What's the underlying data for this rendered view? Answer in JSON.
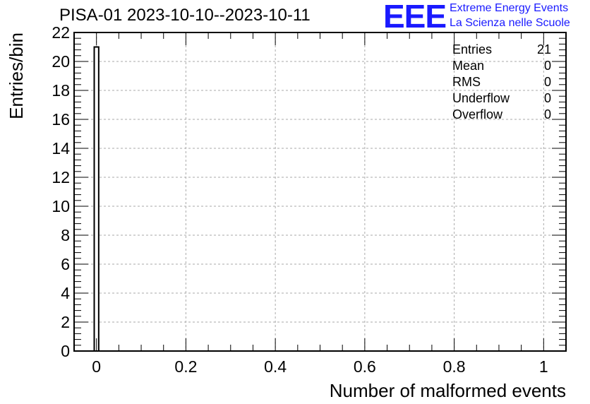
{
  "header": {
    "title": "PISA-01 2023-10-10--2023-10-11"
  },
  "logo": {
    "mark": "EEE",
    "line1": "Extreme Energy Events",
    "line2": "La Scienza nelle Scuole",
    "color": "#1a1aff"
  },
  "stats": {
    "rows": [
      {
        "label": "Entries",
        "value": "21"
      },
      {
        "label": "Mean",
        "value": "0"
      },
      {
        "label": "RMS",
        "value": "0"
      },
      {
        "label": "Underflow",
        "value": "0"
      },
      {
        "label": "Overflow",
        "value": "0"
      }
    ]
  },
  "chart_data": {
    "type": "bar",
    "title": "PISA-01 2023-10-10--2023-10-11",
    "xlabel": "Number of malformed events",
    "ylabel": "Entries/bin",
    "xlim": [
      -0.05,
      1.05
    ],
    "ylim": [
      0,
      22
    ],
    "x_ticks": [
      0,
      0.2,
      0.4,
      0.6,
      0.8,
      1
    ],
    "x_tick_labels": [
      "0",
      "0.2",
      "0.4",
      "0.6",
      "0.8",
      "1"
    ],
    "y_ticks": [
      0,
      2,
      4,
      6,
      8,
      10,
      12,
      14,
      16,
      18,
      20,
      22
    ],
    "y_tick_labels": [
      "0",
      "2",
      "4",
      "6",
      "8",
      "10",
      "12",
      "14",
      "16",
      "18",
      "20",
      "22"
    ],
    "bins": [
      {
        "x_low": -0.005,
        "x_high": 0.005,
        "value": 21
      }
    ],
    "grid": true,
    "bar_fill": "#ffffff",
    "bar_stroke": "#000000",
    "grid_color": "#aaaaaa"
  }
}
